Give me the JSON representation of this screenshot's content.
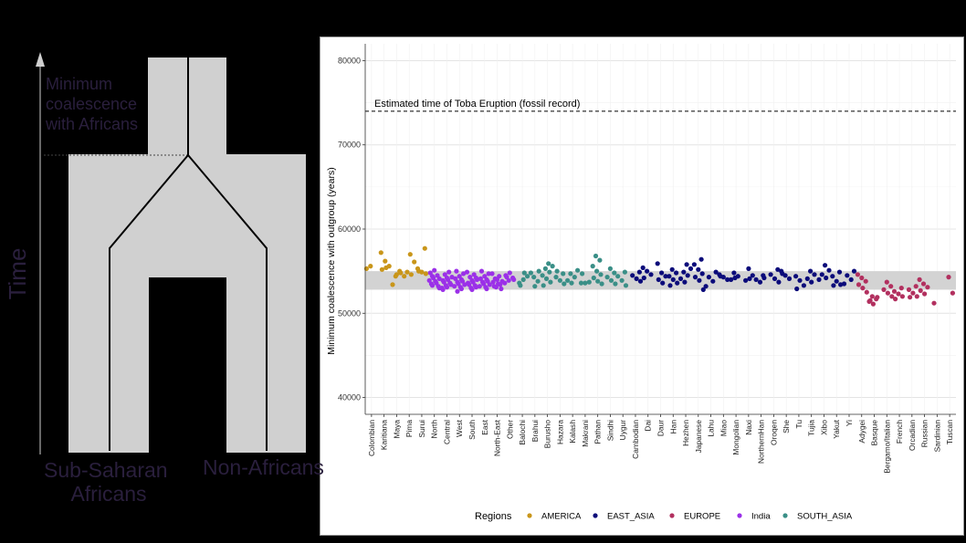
{
  "left_diagram": {
    "time_label": "Time",
    "annotation": [
      "Minimum",
      "coalescence",
      "with Africans"
    ],
    "left_group": [
      "Sub-Saharan",
      "Africans"
    ],
    "right_group": "Non-Africans"
  },
  "chart_data": {
    "type": "scatter",
    "title": "",
    "xlabel": "",
    "ylabel": "Minimum coalescence with outgroup (years)",
    "ylim": [
      38000,
      82000
    ],
    "yticks": [
      40000,
      50000,
      60000,
      70000,
      80000
    ],
    "reference_line": {
      "y": 74000,
      "label": "Estimated time of Toba Eruption (fossil record)",
      "style": "dashed"
    },
    "shaded_band": {
      "y_range": [
        52800,
        55000
      ]
    },
    "grid": true,
    "legend": {
      "title": "Regions",
      "position": "bottom"
    },
    "regions": [
      {
        "name": "AMERICA",
        "color": "#c9961a"
      },
      {
        "name": "EAST_ASIA",
        "color": "#0b0b7a"
      },
      {
        "name": "EUROPE",
        "color": "#b2305f"
      },
      {
        "name": "India",
        "color": "#9b30e8"
      },
      {
        "name": "SOUTH_ASIA",
        "color": "#3a8f87"
      }
    ],
    "groups": [
      {
        "name": "Colombian",
        "region": "AMERICA",
        "values": [
          55300,
          55600
        ]
      },
      {
        "name": "Karitiana",
        "region": "AMERICA",
        "values": [
          57200,
          56200,
          55600,
          55200,
          55400
        ]
      },
      {
        "name": "Maya",
        "region": "AMERICA",
        "values": [
          54400,
          55000,
          53400,
          54600,
          54800
        ]
      },
      {
        "name": "Pima",
        "region": "AMERICA",
        "values": [
          57000,
          56100,
          54900,
          54600,
          54400
        ]
      },
      {
        "name": "Surui",
        "region": "AMERICA",
        "values": [
          57700,
          55300,
          54900,
          54700,
          55000
        ]
      },
      {
        "name": "North",
        "region": "India",
        "values": [
          53000,
          53300,
          53600,
          53900,
          54200,
          54500,
          54800,
          55100,
          53200,
          53500,
          53800,
          54100,
          54400
        ]
      },
      {
        "name": "Central",
        "region": "India",
        "values": [
          52800,
          53100,
          53400,
          53700,
          54000,
          54300,
          54600,
          54900,
          53000,
          53300,
          53600,
          53900,
          54200
        ]
      },
      {
        "name": "West",
        "region": "India",
        "values": [
          52600,
          52900,
          53200,
          53500,
          53800,
          54100,
          54400,
          54700,
          55000,
          53100,
          53400,
          53700,
          54000
        ]
      },
      {
        "name": "South",
        "region": "India",
        "values": [
          52800,
          53100,
          53400,
          53700,
          54000,
          54300,
          54600,
          54900,
          53000,
          53300,
          53600,
          53900,
          54200
        ]
      },
      {
        "name": "East",
        "region": "India",
        "values": [
          52900,
          53200,
          53500,
          53800,
          54100,
          54400,
          54700,
          55000,
          53100,
          53400,
          53700,
          54000
        ]
      },
      {
        "name": "North-East",
        "region": "India",
        "values": [
          52900,
          53200,
          53500,
          53800,
          54100,
          54400,
          54700,
          53100,
          53400,
          53700,
          54000
        ]
      },
      {
        "name": "Other",
        "region": "India",
        "values": [
          53600,
          53900,
          54200,
          54500,
          54800,
          54000,
          54300
        ]
      },
      {
        "name": "Balochi",
        "region": "SOUTH_ASIA",
        "values": [
          53600,
          54000,
          54400,
          53300,
          54800
        ]
      },
      {
        "name": "Brahui",
        "region": "SOUTH_ASIA",
        "values": [
          54300,
          53800,
          54800,
          53200,
          55000
        ]
      },
      {
        "name": "Burusho",
        "region": "SOUTH_ASIA",
        "values": [
          55900,
          55600,
          55300,
          54900,
          54500,
          54100,
          53700,
          53300
        ]
      },
      {
        "name": "Hazara",
        "region": "SOUTH_ASIA",
        "values": [
          54700,
          54300,
          53900,
          53500,
          55000
        ]
      },
      {
        "name": "Kalash",
        "region": "SOUTH_ASIA",
        "values": [
          55100,
          54700,
          54300,
          53900,
          53600
        ]
      },
      {
        "name": "Makrani",
        "region": "SOUTH_ASIA",
        "values": [
          53600,
          53600,
          53700,
          54700
        ]
      },
      {
        "name": "Pathan",
        "region": "SOUTH_ASIA",
        "values": [
          56800,
          56300,
          55600,
          55000,
          54600,
          54200,
          53800,
          53500
        ]
      },
      {
        "name": "Sindhi",
        "region": "SOUTH_ASIA",
        "values": [
          55300,
          54800,
          54300,
          53900,
          53500
        ]
      },
      {
        "name": "Uygur",
        "region": "SOUTH_ASIA",
        "values": [
          54900,
          54400,
          53900,
          53300
        ]
      },
      {
        "name": "Cambodian",
        "region": "EAST_ASIA",
        "values": [
          54900,
          54500,
          54100,
          53800
        ]
      },
      {
        "name": "Dai",
        "region": "EAST_ASIA",
        "values": [
          55400,
          55000,
          54600,
          54200
        ]
      },
      {
        "name": "Daur",
        "region": "EAST_ASIA",
        "values": [
          55900,
          54800,
          54400,
          54000,
          53600
        ]
      },
      {
        "name": "Han",
        "region": "EAST_ASIA",
        "values": [
          55200,
          54800,
          54400,
          54000,
          53600,
          53300
        ]
      },
      {
        "name": "Hezhen",
        "region": "EAST_ASIA",
        "values": [
          55800,
          55300,
          54900,
          54500,
          54100,
          53700
        ]
      },
      {
        "name": "Japanese",
        "region": "EAST_ASIA",
        "values": [
          56400,
          55800,
          55200,
          54700,
          54300,
          53900,
          52800
        ]
      },
      {
        "name": "Lahu",
        "region": "EAST_ASIA",
        "values": [
          54900,
          54300,
          53800,
          53200
        ]
      },
      {
        "name": "Miao",
        "region": "EAST_ASIA",
        "values": [
          54600,
          54300,
          54000,
          54400
        ]
      },
      {
        "name": "Mongolian",
        "region": "EAST_ASIA",
        "values": [
          54800,
          54400,
          54000,
          54200
        ]
      },
      {
        "name": "Naxi",
        "region": "EAST_ASIA",
        "values": [
          55300,
          54500,
          53900,
          54100
        ]
      },
      {
        "name": "NorthernHan",
        "region": "EAST_ASIA",
        "values": [
          54500,
          54000,
          53700,
          54200
        ]
      },
      {
        "name": "Oroqen",
        "region": "EAST_ASIA",
        "values": [
          55200,
          54600,
          54100,
          53700
        ]
      },
      {
        "name": "She",
        "region": "EAST_ASIA",
        "values": [
          55000,
          54500,
          54100,
          54700
        ]
      },
      {
        "name": "Tu",
        "region": "EAST_ASIA",
        "values": [
          54400,
          53900,
          53300,
          52900
        ]
      },
      {
        "name": "Tujia",
        "region": "EAST_ASIA",
        "values": [
          55000,
          54600,
          54100,
          53700
        ]
      },
      {
        "name": "Xibo",
        "region": "EAST_ASIA",
        "values": [
          55700,
          55100,
          54600,
          54200,
          54000
        ]
      },
      {
        "name": "Yakut",
        "region": "EAST_ASIA",
        "values": [
          54900,
          54400,
          53800,
          53400,
          53300
        ]
      },
      {
        "name": "Yi",
        "region": "EAST_ASIA",
        "values": [
          55000,
          54500,
          54000,
          53500
        ]
      },
      {
        "name": "Adygei",
        "region": "EUROPE",
        "values": [
          54600,
          54200,
          53800,
          53400,
          53000,
          52500
        ]
      },
      {
        "name": "Basque",
        "region": "EUROPE",
        "values": [
          52000,
          51700,
          51400,
          51100,
          51900,
          51500
        ]
      },
      {
        "name": "Bergamo/Italian",
        "region": "EUROPE",
        "values": [
          53700,
          53200,
          52800,
          52400,
          52000
        ]
      },
      {
        "name": "French",
        "region": "EUROPE",
        "values": [
          53000,
          52600,
          52300,
          52000,
          51700
        ]
      },
      {
        "name": "Orcadian",
        "region": "EUROPE",
        "values": [
          53200,
          52800,
          52400,
          52000,
          51900
        ]
      },
      {
        "name": "Russian",
        "region": "EUROPE",
        "values": [
          54000,
          53500,
          53100,
          52700,
          52300
        ]
      },
      {
        "name": "Sardinian",
        "region": "EUROPE",
        "values": [
          51200
        ]
      },
      {
        "name": "Tuscan",
        "region": "EUROPE",
        "values": [
          54300,
          52400
        ]
      }
    ]
  }
}
